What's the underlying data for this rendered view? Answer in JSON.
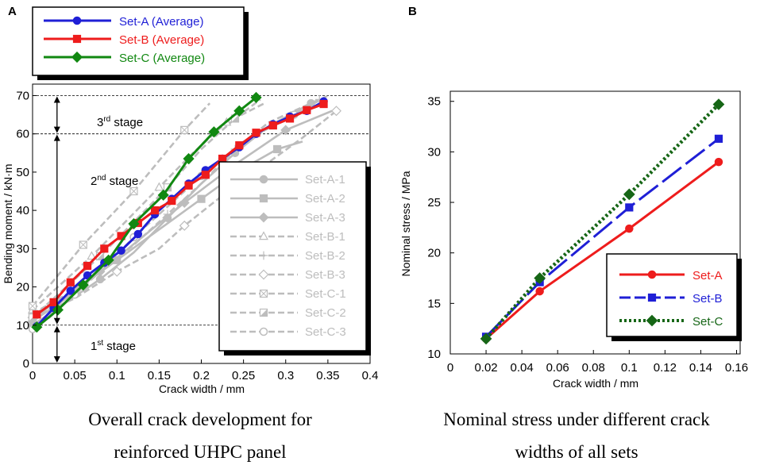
{
  "chart_data": [
    {
      "panel": "A",
      "type": "line",
      "xlabel": "Crack width / mm",
      "ylabel": "Bending moment / kN·m",
      "xlim": [
        0,
        0.4
      ],
      "ylim": [
        0,
        70
      ],
      "xticks": [
        "0",
        "0.05",
        "0.1",
        "0.15",
        "0.2",
        "0.25",
        "0.3",
        "0.35",
        "0.4"
      ],
      "yticks": [
        "0",
        "10",
        "20",
        "30",
        "40",
        "50",
        "60",
        "70"
      ],
      "stages": [
        {
          "label": "3",
          "sup": "rd",
          "rest": " stage"
        },
        {
          "label": "2",
          "sup": "nd",
          "rest": " stage"
        },
        {
          "label": "1",
          "sup": "st",
          "rest": " stage"
        }
      ],
      "stage_lines": [
        10,
        60,
        70
      ],
      "series": [
        {
          "name": "Set-A (Average)",
          "color": "#1f1fd6",
          "marker": "circle",
          "x": [
            0.005,
            0.025,
            0.045,
            0.065,
            0.085,
            0.105,
            0.125,
            0.145,
            0.165,
            0.185,
            0.205,
            0.225,
            0.245,
            0.265,
            0.285,
            0.305,
            0.325,
            0.345
          ],
          "y": [
            9.7,
            14.5,
            19.0,
            23.0,
            26.3,
            29.5,
            33.8,
            39.0,
            43.0,
            47.0,
            50.5,
            53.5,
            56.5,
            60.0,
            62.5,
            64.5,
            66.0,
            68.5
          ]
        },
        {
          "name": "Set-B (Average)",
          "color": "#ee1c1c",
          "marker": "square",
          "x": [
            0.005,
            0.025,
            0.045,
            0.065,
            0.085,
            0.105,
            0.125,
            0.145,
            0.165,
            0.185,
            0.205,
            0.225,
            0.245,
            0.265,
            0.285,
            0.305,
            0.325,
            0.345
          ],
          "y": [
            12.8,
            16.0,
            21.2,
            25.5,
            30.0,
            33.3,
            36.7,
            40.0,
            42.5,
            46.5,
            49.3,
            53.5,
            57.0,
            60.3,
            62.2,
            64.0,
            66.2,
            67.8
          ]
        },
        {
          "name": "Set-C (Average)",
          "color": "#118811",
          "marker": "diamond",
          "x": [
            0.005,
            0.03,
            0.06,
            0.09,
            0.12,
            0.155,
            0.185,
            0.215,
            0.245,
            0.265
          ],
          "y": [
            9.5,
            14.0,
            20.5,
            27.0,
            36.5,
            44.0,
            53.5,
            60.5,
            66.0,
            69.5
          ]
        }
      ],
      "individual_series": [
        {
          "name": "Set-A-1",
          "style": "solid",
          "marker": "circle",
          "x": [
            0.0,
            0.04,
            0.08,
            0.12,
            0.16,
            0.2,
            0.24,
            0.28,
            0.33
          ],
          "y": [
            10,
            16,
            22,
            29,
            38,
            47,
            55,
            62,
            68
          ]
        },
        {
          "name": "Set-A-2",
          "style": "solid",
          "marker": "square",
          "x": [
            0.0,
            0.05,
            0.1,
            0.15,
            0.2,
            0.25,
            0.29,
            0.32
          ],
          "y": [
            12,
            19,
            27,
            35,
            43,
            51,
            56,
            58
          ]
        },
        {
          "name": "Set-A-3",
          "style": "solid",
          "marker": "diamond",
          "x": [
            0.0,
            0.04,
            0.08,
            0.13,
            0.18,
            0.24,
            0.3,
            0.355
          ],
          "y": [
            11,
            17,
            24,
            33,
            42,
            52,
            61,
            66
          ]
        },
        {
          "name": "Set-B-1",
          "style": "dashed",
          "marker": "triangle",
          "x": [
            0.0,
            0.03,
            0.07,
            0.11,
            0.15,
            0.19,
            0.23,
            0.275
          ],
          "y": [
            14,
            20,
            28,
            37,
            46,
            55,
            63,
            68
          ]
        },
        {
          "name": "Set-B-2",
          "style": "dashed",
          "marker": "plus",
          "x": [
            0.0,
            0.04,
            0.08,
            0.12,
            0.16,
            0.2,
            0.24,
            0.28,
            0.34
          ],
          "y": [
            13,
            18,
            24,
            31,
            39,
            47,
            56,
            63,
            69
          ]
        },
        {
          "name": "Set-B-3",
          "style": "dashed",
          "marker": "open-diamond",
          "x": [
            0.0,
            0.05,
            0.1,
            0.15,
            0.18,
            0.22,
            0.27,
            0.32,
            0.36
          ],
          "y": [
            12,
            17,
            24,
            30,
            36,
            43,
            51,
            59,
            66
          ]
        },
        {
          "name": "Set-C-1",
          "style": "dashed",
          "marker": "x-square",
          "x": [
            0.0,
            0.03,
            0.06,
            0.09,
            0.12,
            0.15,
            0.18,
            0.21
          ],
          "y": [
            15,
            23,
            31,
            38,
            45,
            53,
            61,
            68
          ]
        },
        {
          "name": "Set-C-2",
          "style": "dashed",
          "marker": "half-square",
          "x": [
            0.0,
            0.04,
            0.08,
            0.12,
            0.16,
            0.2,
            0.24,
            0.27
          ],
          "y": [
            12,
            20,
            28,
            37,
            46,
            56,
            64,
            69
          ]
        },
        {
          "name": "Set-C-3",
          "style": "dashed",
          "marker": "open-circle",
          "x": [
            0.0,
            0.02,
            0.05,
            0.085,
            0.12,
            0.16,
            0.2,
            0.25,
            0.31,
            0.35
          ],
          "y": [
            9,
            12,
            18,
            25,
            33,
            41,
            49,
            58,
            65,
            70
          ]
        }
      ]
    },
    {
      "panel": "B",
      "type": "line",
      "xlabel": "Crack width / mm",
      "ylabel": "Nominal stress / MPa",
      "xlim": [
        0,
        0.16
      ],
      "ylim": [
        10,
        35
      ],
      "xticks": [
        "0",
        "0.02",
        "0.04",
        "0.06",
        "0.08",
        "0.1",
        "0.12",
        "0.14",
        "0.16"
      ],
      "yticks": [
        "10",
        "15",
        "20",
        "25",
        "30",
        "35"
      ],
      "series": [
        {
          "name": "Set-A",
          "color": "#ee1c1c",
          "marker": "circle",
          "style": "solid",
          "x": [
            0.02,
            0.05,
            0.1,
            0.15
          ],
          "y": [
            11.5,
            16.2,
            22.4,
            29.0
          ]
        },
        {
          "name": "Set-B",
          "color": "#1f1fd6",
          "marker": "square",
          "style": "longdash",
          "x": [
            0.02,
            0.05,
            0.1,
            0.15
          ],
          "y": [
            11.7,
            17.1,
            24.5,
            31.3
          ]
        },
        {
          "name": "Set-C",
          "color": "#166616",
          "marker": "diamond",
          "style": "dotted",
          "x": [
            0.02,
            0.05,
            0.1,
            0.15
          ],
          "y": [
            11.5,
            17.5,
            25.8,
            34.7
          ]
        }
      ]
    }
  ],
  "captions": {
    "a_line1": "Overall crack development for",
    "a_line2": "reinforced UHPC panel",
    "b_line1": "Nominal stress under different crack",
    "b_line2": "widths of all sets"
  }
}
